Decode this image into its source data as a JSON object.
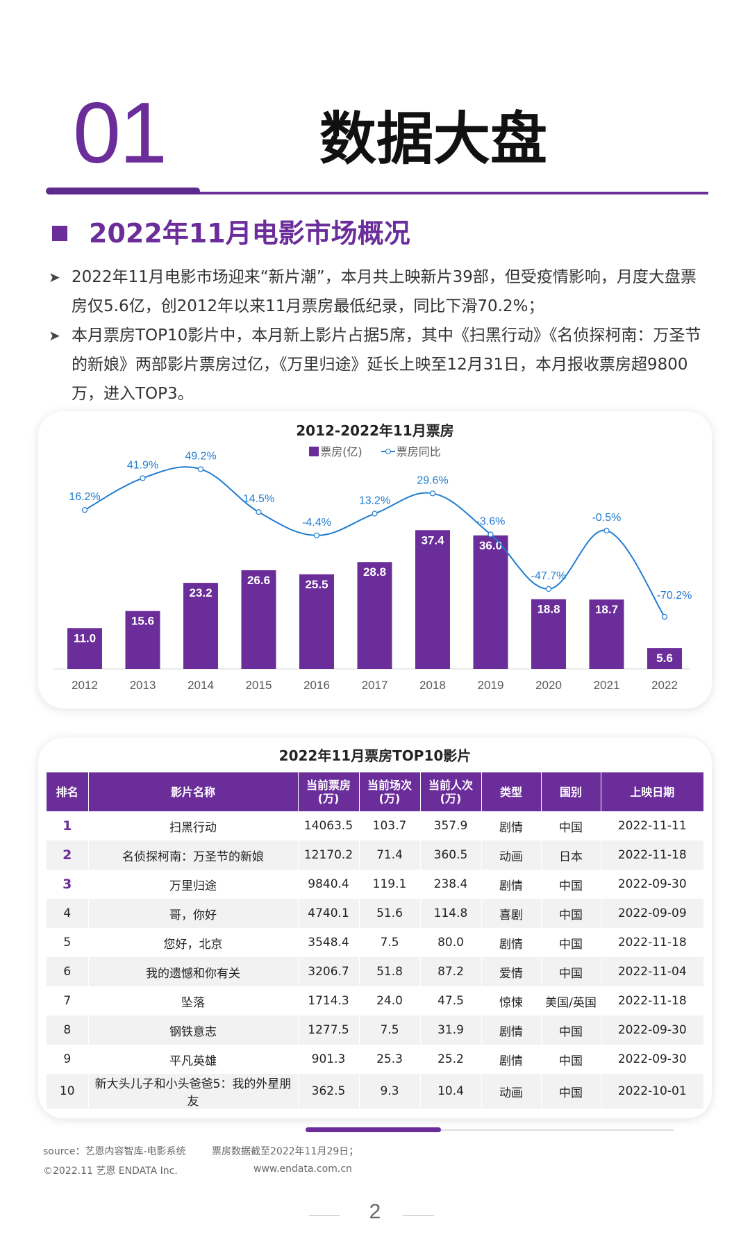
{
  "header": {
    "section_number": "01",
    "section_title": "数据大盘"
  },
  "subsection": {
    "title": "2022年11月电影市场概况"
  },
  "bullets": [
    "2022年11月电影市场迎来“新片潮”，本月共上映新片39部，但受疫情影响，月度大盘票房仅5.6亿，创2012年以来11月票房最低纪录，同比下滑70.2%；",
    "本月票房TOP10影片中，本月新上影片占据5席，其中《扫黑行动》《名侦探柯南：万圣节的新娘》两部影片票房过亿，《万里归途》延长上映至12月31日，本月报收票房超9800万，进入TOP3。"
  ],
  "chart_data": {
    "type": "bar",
    "title": "2012-2022年11月票房",
    "categories": [
      "2012",
      "2013",
      "2014",
      "2015",
      "2016",
      "2017",
      "2018",
      "2019",
      "2020",
      "2021",
      "2022"
    ],
    "series": [
      {
        "name": "票房(亿)",
        "type": "bar",
        "values": [
          11.0,
          15.6,
          23.2,
          26.6,
          25.5,
          28.8,
          37.4,
          36.0,
          18.8,
          18.7,
          5.6
        ],
        "labels": [
          "11.0",
          "15.6",
          "23.2",
          "26.6",
          "25.5",
          "28.8",
          "37.4",
          "36.0",
          "18.8",
          "18.7",
          "5.6"
        ]
      },
      {
        "name": "票房同比",
        "type": "line",
        "values": [
          16.2,
          41.9,
          49.2,
          14.5,
          -4.4,
          13.2,
          29.6,
          -3.6,
          -47.7,
          -0.5,
          -70.2
        ],
        "labels": [
          "16.2%",
          "41.9%",
          "49.2%",
          "14.5%",
          "-4.4%",
          "13.2%",
          "29.6%",
          "-3.6%",
          "-47.7%",
          "-0.5%",
          "-70.2%"
        ]
      }
    ],
    "legend_position": "top-center",
    "grid": false,
    "colors": {
      "bar": "#6b2d9a",
      "line": "#1f7bd1",
      "bar_label": "#ffffff",
      "line_label": "#1f7bd1"
    }
  },
  "table": {
    "title": "2022年11月票房TOP10影片",
    "headers": [
      [
        "排名"
      ],
      [
        "影片名称"
      ],
      [
        "当前票房",
        "(万)"
      ],
      [
        "当前场次",
        "(万)"
      ],
      [
        "当前人次",
        "(万)"
      ],
      [
        "类型"
      ],
      [
        "国别"
      ],
      [
        "上映日期"
      ]
    ],
    "rows": [
      [
        "1",
        "扫黑行动",
        "14063.5",
        "103.7",
        "357.9",
        "剧情",
        "中国",
        "2022-11-11"
      ],
      [
        "2",
        "名侦探柯南：万圣节的新娘",
        "12170.2",
        "71.4",
        "360.5",
        "动画",
        "日本",
        "2022-11-18"
      ],
      [
        "3",
        "万里归途",
        "9840.4",
        "119.1",
        "238.4",
        "剧情",
        "中国",
        "2022-09-30"
      ],
      [
        "4",
        "哥，你好",
        "4740.1",
        "51.6",
        "114.8",
        "喜剧",
        "中国",
        "2022-09-09"
      ],
      [
        "5",
        "您好，北京",
        "3548.4",
        "7.5",
        "80.0",
        "剧情",
        "中国",
        "2022-11-18"
      ],
      [
        "6",
        "我的遗憾和你有关",
        "3206.7",
        "51.8",
        "87.2",
        "爱情",
        "中国",
        "2022-11-04"
      ],
      [
        "7",
        "坠落",
        "1714.3",
        "24.0",
        "47.5",
        "惊悚",
        "美国/英国",
        "2022-11-18"
      ],
      [
        "8",
        "钢铁意志",
        "1277.5",
        "7.5",
        "31.9",
        "剧情",
        "中国",
        "2022-09-30"
      ],
      [
        "9",
        "平凡英雄",
        "901.3",
        "25.3",
        "25.2",
        "剧情",
        "中国",
        "2022-09-30"
      ],
      [
        "10",
        "新大头儿子和小头爸爸5：我的外星朋友",
        "362.5",
        "9.3",
        "10.4",
        "动画",
        "中国",
        "2022-10-01"
      ]
    ],
    "highlight_color": "#6b2d9a"
  },
  "footer": {
    "source": "source：艺恩内容智库-电影系统",
    "note": "票房数据截至2022年11月29日；",
    "copyright": "©2022.11 艺恩 ENDATA Inc.",
    "website": "www.endata.com.cn",
    "page_number": "2"
  }
}
